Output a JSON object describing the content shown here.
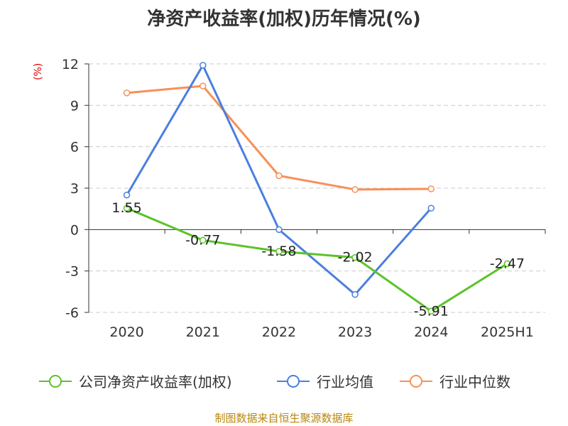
{
  "title": "净资产收益率(加权)历年情况(%)",
  "source": "制图数据来自恒生聚源数据库",
  "chart_data": {
    "type": "line",
    "title": "净资产收益率(加权)历年情况(%)",
    "ylabel": "(%)",
    "xlabel": "",
    "categories": [
      "2020",
      "2021",
      "2022",
      "2023",
      "2024",
      "2025H1"
    ],
    "ylim": [
      -6,
      12
    ],
    "yticks": [
      12,
      9,
      6,
      3,
      0,
      -3,
      -6
    ],
    "ytick_labels": [
      "12",
      "9",
      "6",
      "3",
      "0",
      "-3",
      "-6"
    ],
    "grid": true,
    "legend_position": "bottom",
    "series": [
      {
        "name": "公司净资产收益率(加权)",
        "color": "#5cc32a",
        "values": [
          1.55,
          -0.77,
          -1.58,
          -2.02,
          -5.91,
          -2.47
        ],
        "labels": [
          "1.55",
          "-0.77",
          "-1.58",
          "-2.02",
          "-5.91",
          "-2.47"
        ]
      },
      {
        "name": "行业均值",
        "color": "#4a7fdf",
        "values": [
          2.5,
          11.9,
          0.0,
          -4.7,
          1.55,
          null
        ]
      },
      {
        "name": "行业中位数",
        "color": "#f89058",
        "values": [
          9.9,
          10.4,
          3.9,
          2.9,
          2.95,
          null
        ]
      }
    ]
  }
}
